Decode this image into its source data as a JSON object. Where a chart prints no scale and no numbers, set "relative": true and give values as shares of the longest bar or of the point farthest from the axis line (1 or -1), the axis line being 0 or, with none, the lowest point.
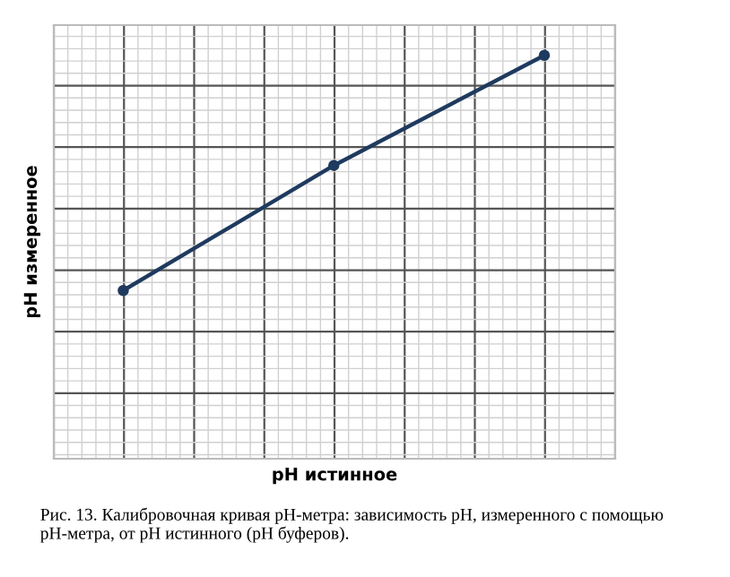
{
  "chart_data": {
    "type": "line",
    "relative": true,
    "xlabel": "pH истинное",
    "ylabel": "pH измеренное",
    "categories": [
      null,
      null,
      null
    ],
    "series": [
      {
        "color": "#1f3a5f",
        "values": [
          0.417,
          0.727,
          1
        ]
      }
    ],
    "marker": "circle",
    "line_style": "solid",
    "grid": true,
    "annotations": [
      "Рис. 13. Калибровочная кривая pH-метра: зависимость pH, измеренного с помощью pH-метра, от pH истинного (pH буферов)."
    ]
  }
}
